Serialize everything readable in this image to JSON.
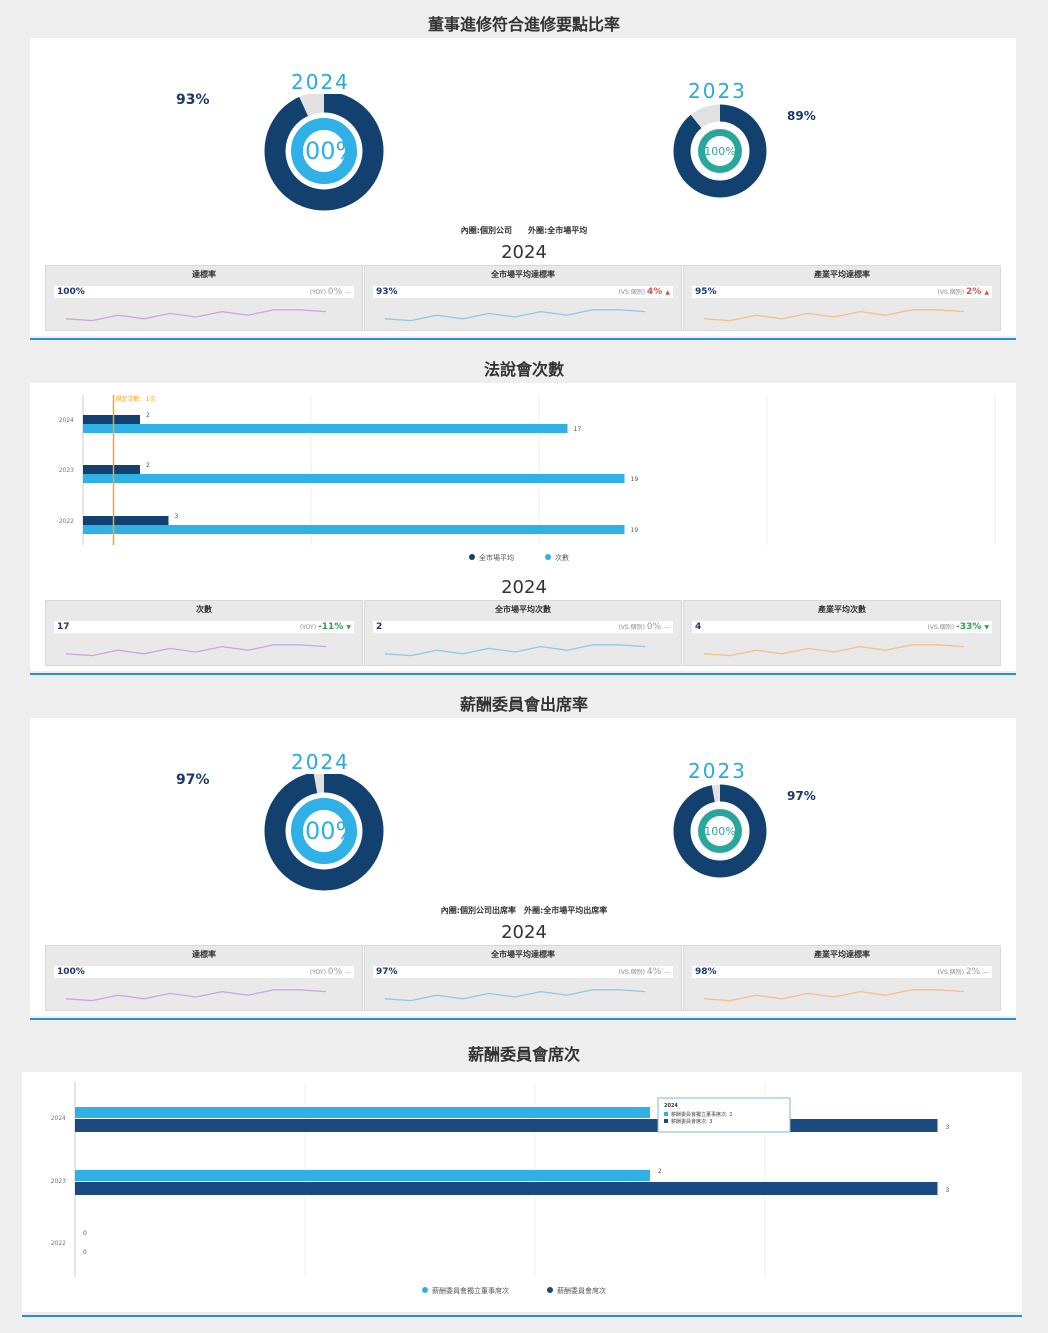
{
  "section1": {
    "title": "董事進修符合進修要點比率",
    "donut_2024": {
      "year": "2024",
      "inner": "100%",
      "outer": "93%",
      "outer_value": 93
    },
    "donut_2023": {
      "year": "2023",
      "inner": "100%",
      "outer": "89%",
      "outer_value": 89
    },
    "legend": "內圈:個別公司　　外圈:全市場平均",
    "cards_year": "2024",
    "cards": [
      {
        "title": "達標率",
        "value": "100%",
        "label": "(YOY)",
        "change": "0%",
        "trend": "flat",
        "arrow": "—",
        "color": "#c9a6e6"
      },
      {
        "title": "全市場平均達標率",
        "value": "93%",
        "label": "(VS.個別)",
        "change": "4%",
        "trend": "up",
        "arrow": "▲",
        "color": "#8ec9e6"
      },
      {
        "title": "產業平均達標率",
        "value": "95%",
        "label": "(VS.個別)",
        "change": "2%",
        "trend": "up",
        "arrow": "▲",
        "color": "#f5c08a"
      }
    ]
  },
  "section2": {
    "title": "法說會次數",
    "cards_year": "2024",
    "cards": [
      {
        "title": "次數",
        "value": "17",
        "label": "(YOY)",
        "change": "-11%",
        "trend": "down",
        "arrow": "▼",
        "color": "#c9a6e6"
      },
      {
        "title": "全市場平均次數",
        "value": "2",
        "label": "(VS.個別)",
        "change": "0%",
        "trend": "flat",
        "arrow": "—",
        "color": "#8ec9e6"
      },
      {
        "title": "產業平均次數",
        "value": "4",
        "label": "(VS.個別)",
        "change": "-33%",
        "trend": "down",
        "arrow": "▼",
        "color": "#f5c08a"
      }
    ]
  },
  "section3": {
    "title": "薪酬委員會出席率",
    "donut_2024": {
      "year": "2024",
      "inner": "100%",
      "outer": "97%",
      "outer_value": 97
    },
    "donut_2023": {
      "year": "2023",
      "inner": "100%",
      "outer": "97%",
      "outer_value": 97
    },
    "legend": "內圈:個別公司出席率　外圈:全市場平均出席率",
    "cards_year": "2024",
    "cards": [
      {
        "title": "達標率",
        "value": "100%",
        "label": "(YOY)",
        "change": "0%",
        "trend": "flat",
        "arrow": "—",
        "color": "#c9a6e6"
      },
      {
        "title": "全市場平均達標率",
        "value": "97%",
        "label": "(VS.個別)",
        "change": "4%",
        "trend": "flat",
        "arrow": "—",
        "color": "#8ec9e6"
      },
      {
        "title": "產業平均達標率",
        "value": "98%",
        "label": "(VS.個別)",
        "change": "2%",
        "trend": "flat",
        "arrow": "—",
        "color": "#f5c08a"
      }
    ]
  },
  "section4": {
    "title": "薪酬委員會席次"
  },
  "chart_data": [
    {
      "type": "bar",
      "title": "法說會次數",
      "orientation": "horizontal",
      "categories": [
        "2024",
        "2023",
        "2022"
      ],
      "series": [
        {
          "name": "全市場平均",
          "color": "#12416f",
          "values": [
            2,
            2,
            3
          ]
        },
        {
          "name": "次數",
          "color": "#2fb0e6",
          "values": [
            17,
            19,
            19
          ]
        }
      ],
      "reference_line": {
        "label": "規定次數：1次",
        "value": 1,
        "color": "#f5a623"
      },
      "xlim": [
        0,
        32
      ],
      "legend": "bottom"
    },
    {
      "type": "bar",
      "title": "薪酬委員會席次",
      "orientation": "horizontal",
      "categories": [
        "2024",
        "2023",
        "2022"
      ],
      "series": [
        {
          "name": "薪酬委員會獨立董事席次",
          "color": "#2fb0e6",
          "values": [
            2,
            2,
            0
          ]
        },
        {
          "name": "薪酬委員會席次",
          "color": "#1a4a80",
          "values": [
            3,
            3,
            0
          ]
        }
      ],
      "tooltip": {
        "title": "2024",
        "lines": [
          "薪酬委員會獨立董事席次: 2",
          "薪酬委員會席次: 3"
        ]
      },
      "xlim": [
        0,
        3.2
      ],
      "legend": "bottom"
    }
  ]
}
